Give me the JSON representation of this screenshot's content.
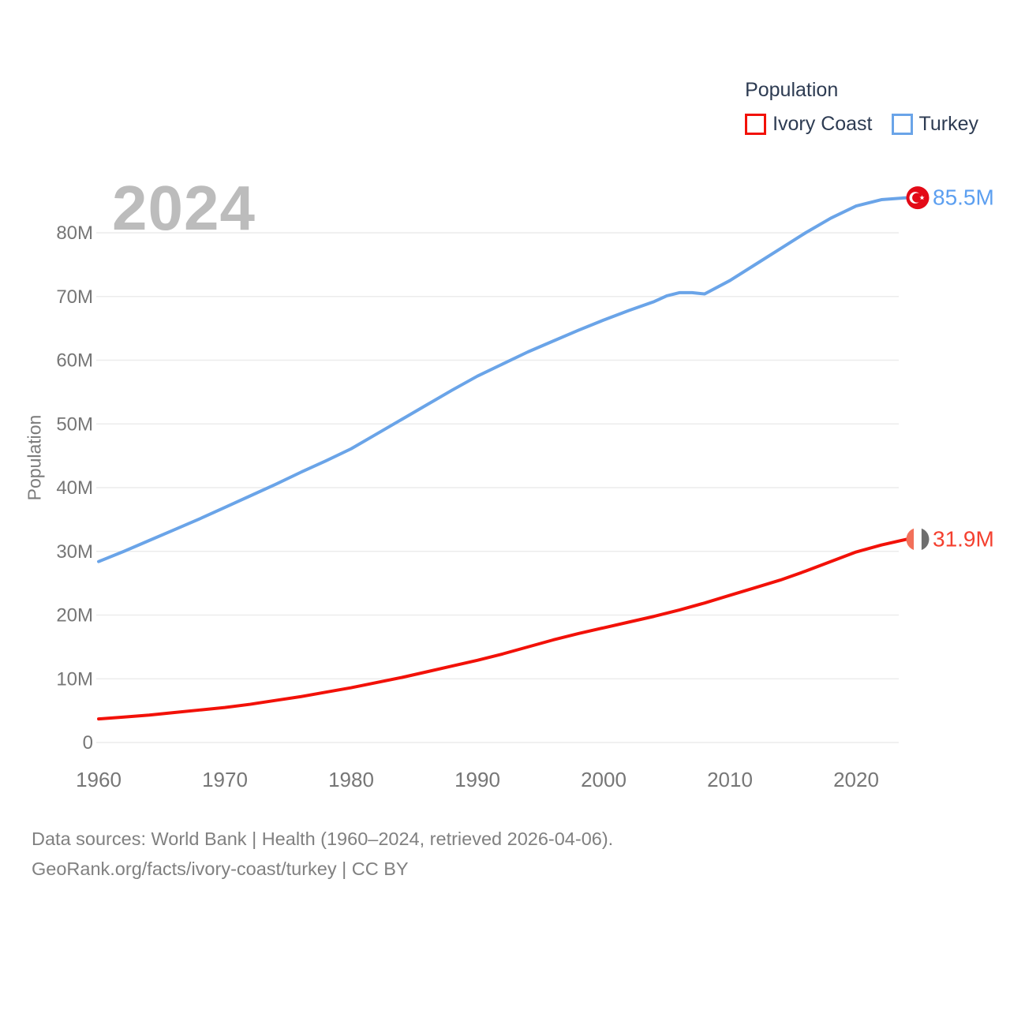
{
  "page": {
    "watermark_year": "2024",
    "footer_line1": "Data sources: World Bank | Health (1960–2024, retrieved 2026-04-06).",
    "footer_line2": "GeoRank.org/facts/ivory-coast/turkey | CC BY"
  },
  "legend": {
    "title": "Population",
    "items": [
      {
        "label": "Ivory Coast",
        "color": "#f21108"
      },
      {
        "label": "Turkey",
        "color": "#6aa4e8"
      }
    ]
  },
  "colors": {
    "grid": "#ececec",
    "axis_text": "#767676",
    "legend_text": "#2d3b52",
    "watermark": "#bcbcbc",
    "footer_text": "#808080",
    "turkey_flag_red": "#e30a17",
    "ivory_flag_stripes": [
      "#f2705a",
      "#ffffff",
      "#6e6e6e"
    ]
  },
  "chart_data": {
    "type": "line",
    "title": "Population",
    "xlabel": "",
    "ylabel": "Population",
    "xlim": [
      1960,
      2024
    ],
    "ylim": [
      0,
      87
    ],
    "grid": "horizontal",
    "legend_position": "top-right",
    "xticks": [
      1960,
      1970,
      1980,
      1990,
      2000,
      2010,
      2020
    ],
    "yticks": [
      0,
      10,
      20,
      30,
      40,
      50,
      60,
      70,
      80
    ],
    "ytick_labels": [
      "0",
      "10M",
      "20M",
      "30M",
      "40M",
      "50M",
      "60M",
      "70M",
      "80M"
    ],
    "series": [
      {
        "id": "ivory-coast",
        "name": "Ivory Coast",
        "color": "#f21108",
        "end_label": "31.9M",
        "end_label_color": "#f4402f",
        "flag": "ivory-coast",
        "x": [
          1960,
          1962,
          1964,
          1966,
          1968,
          1970,
          1972,
          1974,
          1976,
          1978,
          1980,
          1982,
          1984,
          1986,
          1988,
          1990,
          1992,
          1994,
          1996,
          1998,
          2000,
          2002,
          2004,
          2006,
          2008,
          2010,
          2012,
          2014,
          2016,
          2018,
          2020,
          2022,
          2024
        ],
        "y": [
          3.7,
          4.0,
          4.3,
          4.7,
          5.1,
          5.5,
          6.0,
          6.6,
          7.2,
          7.9,
          8.6,
          9.4,
          10.2,
          11.1,
          12.0,
          12.9,
          13.9,
          15.0,
          16.1,
          17.1,
          18.0,
          18.9,
          19.8,
          20.8,
          21.9,
          23.1,
          24.3,
          25.5,
          26.9,
          28.4,
          29.9,
          31.0,
          31.9
        ]
      },
      {
        "id": "turkey",
        "name": "Turkey",
        "color": "#6aa4e8",
        "end_label": "85.5M",
        "end_label_color": "#5c9ff0",
        "flag": "turkey",
        "x": [
          1960,
          1962,
          1964,
          1966,
          1968,
          1970,
          1972,
          1974,
          1976,
          1978,
          1980,
          1982,
          1984,
          1986,
          1988,
          1990,
          1992,
          1994,
          1996,
          1998,
          2000,
          2002,
          2004,
          2005,
          2006,
          2007,
          2008,
          2010,
          2012,
          2014,
          2016,
          2018,
          2020,
          2022,
          2024
        ],
        "y": [
          28.4,
          30.0,
          31.7,
          33.4,
          35.1,
          36.9,
          38.7,
          40.5,
          42.4,
          44.2,
          46.1,
          48.4,
          50.7,
          53.0,
          55.3,
          57.5,
          59.4,
          61.3,
          63.0,
          64.7,
          66.3,
          67.8,
          69.2,
          70.1,
          70.6,
          70.6,
          70.4,
          72.5,
          75.0,
          77.5,
          80.0,
          82.3,
          84.2,
          85.2,
          85.5
        ]
      }
    ]
  }
}
